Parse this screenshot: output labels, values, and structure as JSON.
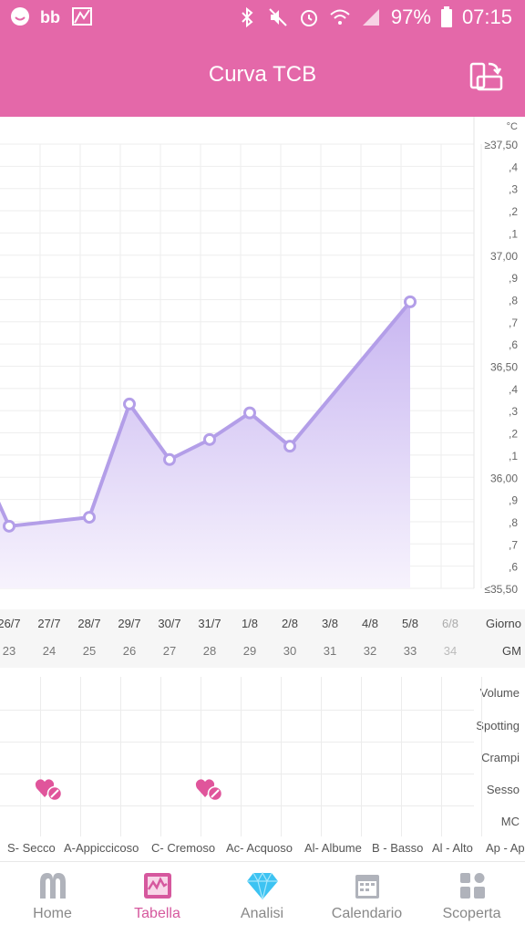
{
  "status": {
    "battery": "97%",
    "time": "07:15"
  },
  "header": {
    "title": "Curva TCB"
  },
  "chart_data": {
    "type": "area",
    "unit": "°C",
    "ylim": [
      35.5,
      37.5
    ],
    "ytick_labels": [
      "≥37,50",
      ",4",
      ",3",
      ",2",
      ",1",
      "37,00",
      ",9",
      ",8",
      ",7",
      ",6",
      "36,50",
      ",4",
      ",3",
      ",2",
      ",1",
      "36,00",
      ",9",
      ",8",
      ",7",
      ",6",
      "≤35,50"
    ],
    "cycle_days": [
      23,
      24,
      25,
      26,
      27,
      28,
      29,
      30,
      31,
      32,
      33,
      34
    ],
    "x": [
      "26/7",
      "27/7",
      "28/7",
      "29/7",
      "30/7",
      "31/7",
      "1/8",
      "2/8",
      "3/8",
      "4/8",
      "5/8",
      "6/8"
    ],
    "values": [
      35.78,
      null,
      35.82,
      36.33,
      36.08,
      36.17,
      36.29,
      36.14,
      null,
      null,
      36.79,
      null
    ],
    "color": "#b39ee8",
    "fill_top": "#c8b6f1",
    "fill_bottom": "#f7f3fd",
    "grid": true
  },
  "daystrip": {
    "day_row_label": "Giorno",
    "cd_row_label": "GM",
    "days": [
      {
        "date": "26/7",
        "cd": "23"
      },
      {
        "date": "27/7",
        "cd": "24"
      },
      {
        "date": "28/7",
        "cd": "25"
      },
      {
        "date": "29/7",
        "cd": "26"
      },
      {
        "date": "30/7",
        "cd": "27"
      },
      {
        "date": "31/7",
        "cd": "28"
      },
      {
        "date": "1/8",
        "cd": "29"
      },
      {
        "date": "2/8",
        "cd": "30"
      },
      {
        "date": "3/8",
        "cd": "31"
      },
      {
        "date": "4/8",
        "cd": "32"
      },
      {
        "date": "5/8",
        "cd": "33"
      },
      {
        "date": "6/8",
        "cd": "34"
      }
    ]
  },
  "events": {
    "rows": [
      "Volume",
      "Spotting",
      "Crampi",
      "Sesso",
      "MC"
    ],
    "sex_marker_days": [
      "27/7",
      "31/7"
    ],
    "sex_icon": "heart-pill-icon"
  },
  "legend": [
    "S- Secco",
    "A-Appiccicoso",
    "C- Cremoso",
    "Ac- Acquoso",
    "Al- Albume",
    "B - Basso",
    "Al - Alto",
    "Ap - Ap"
  ],
  "nav": {
    "items": [
      {
        "label": "Home",
        "icon": "home-m-icon"
      },
      {
        "label": "Tabella",
        "icon": "chart-icon",
        "active": true
      },
      {
        "label": "Analisi",
        "icon": "diamond-icon"
      },
      {
        "label": "Calendario",
        "icon": "calendar-icon"
      },
      {
        "label": "Scoperta",
        "icon": "discover-icon"
      }
    ]
  },
  "colors": {
    "brand": "#e468a9",
    "accent_active": "#d6589e",
    "line": "#b39ee8"
  }
}
